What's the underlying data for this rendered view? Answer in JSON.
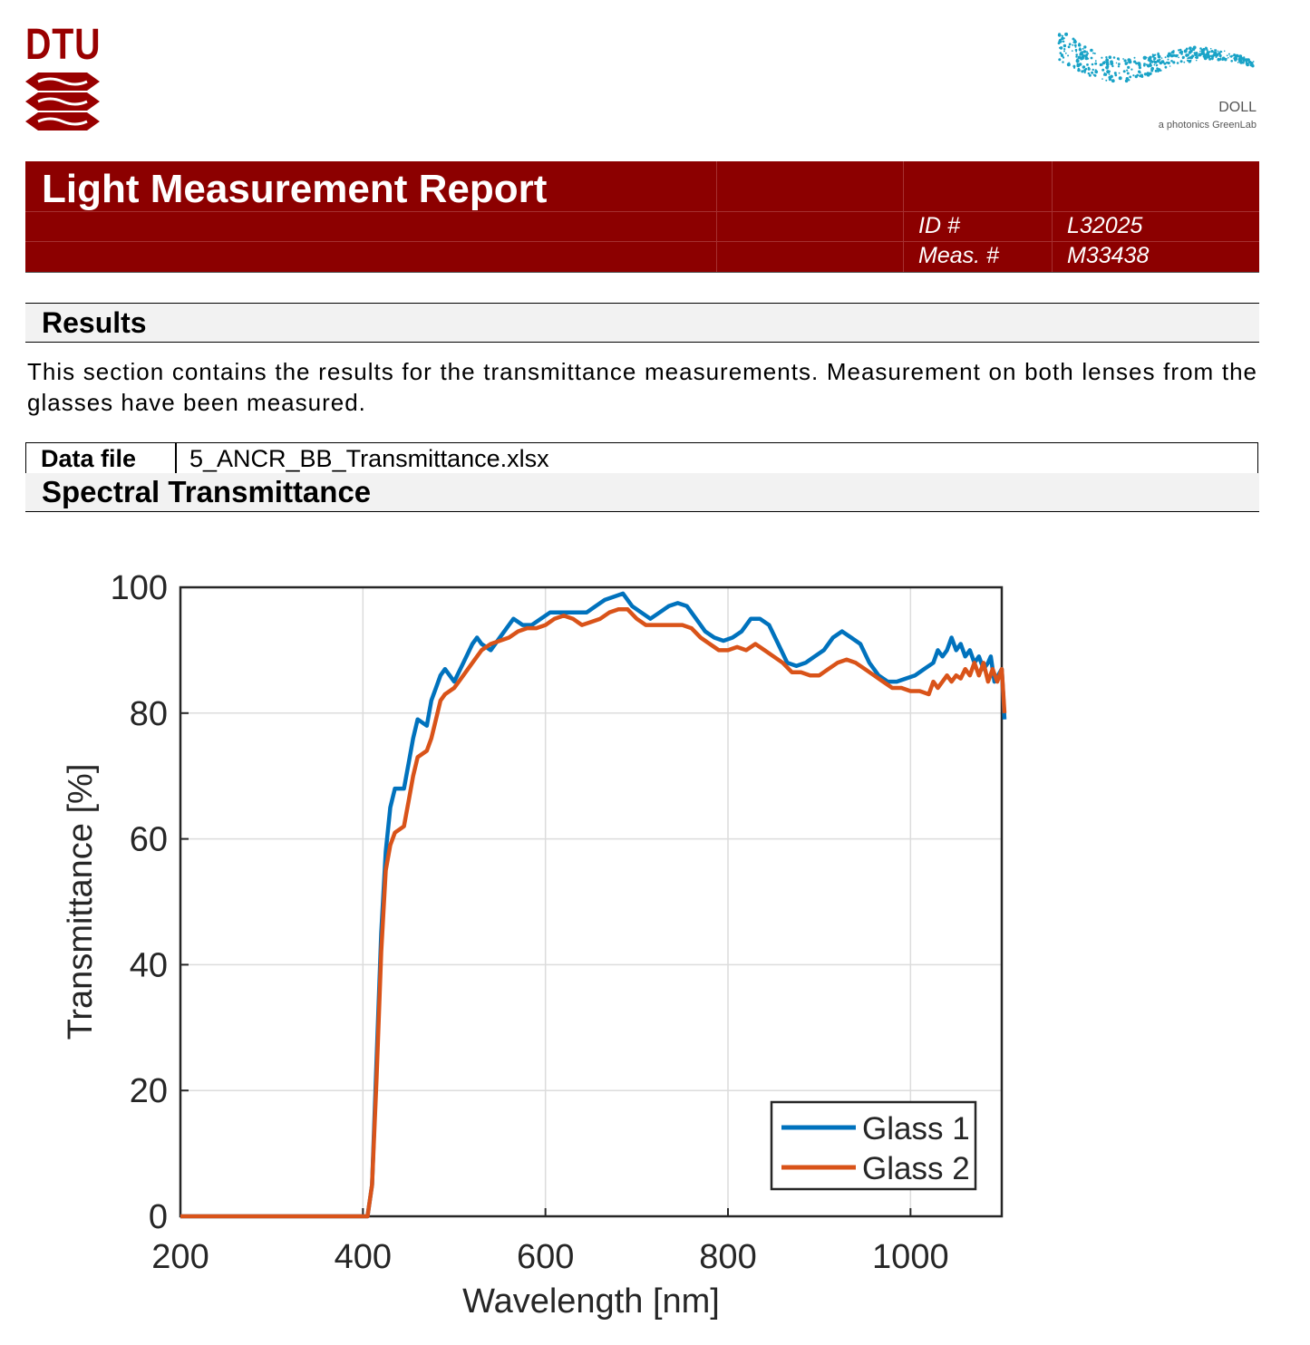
{
  "logos": {
    "dtu_text": "DTU",
    "doll_name": "DOLL",
    "doll_subtitle": "a photonics GreenLab",
    "brand_color": "#990000",
    "doll_color": "#1aa3c7"
  },
  "header": {
    "title": "Light Measurement Report",
    "id_label": "ID #",
    "id_value": "L32025",
    "meas_label": "Meas. #",
    "meas_value": "M33438",
    "background": "#8c0000"
  },
  "results": {
    "heading": "Results",
    "text": "This section contains the results for the transmittance measurements. Measurement on both lenses from the glasses have been measured."
  },
  "data_file": {
    "label": "Data file",
    "value": "5_ANCR_BB_Transmittance.xlsx"
  },
  "spectral": {
    "heading": "Spectral Transmittance"
  },
  "chart_data": {
    "type": "line",
    "title": "",
    "xlabel": "Wavelength [nm]",
    "ylabel": "Transmittance [%]",
    "xlim": [
      200,
      1100
    ],
    "ylim": [
      0,
      100
    ],
    "xticks": [
      200,
      400,
      600,
      800,
      1000
    ],
    "yticks": [
      0,
      20,
      40,
      60,
      80,
      100
    ],
    "grid": true,
    "legend": "bottom-right",
    "series": [
      {
        "name": "Glass 1",
        "color": "#0072bd",
        "points": [
          [
            200,
            0
          ],
          [
            240,
            0
          ],
          [
            280,
            0
          ],
          [
            320,
            0
          ],
          [
            360,
            0
          ],
          [
            405,
            0
          ],
          [
            410,
            5
          ],
          [
            415,
            25
          ],
          [
            420,
            45
          ],
          [
            425,
            58
          ],
          [
            430,
            65
          ],
          [
            435,
            68
          ],
          [
            445,
            68
          ],
          [
            450,
            72
          ],
          [
            455,
            76
          ],
          [
            460,
            79
          ],
          [
            470,
            78
          ],
          [
            475,
            82
          ],
          [
            480,
            84
          ],
          [
            485,
            86
          ],
          [
            490,
            87
          ],
          [
            495,
            86
          ],
          [
            500,
            85
          ],
          [
            510,
            88
          ],
          [
            520,
            91
          ],
          [
            525,
            92
          ],
          [
            530,
            91
          ],
          [
            540,
            90
          ],
          [
            550,
            92
          ],
          [
            560,
            94
          ],
          [
            565,
            95
          ],
          [
            575,
            94
          ],
          [
            585,
            94
          ],
          [
            595,
            95
          ],
          [
            605,
            96
          ],
          [
            615,
            96
          ],
          [
            630,
            96
          ],
          [
            645,
            96
          ],
          [
            655,
            97
          ],
          [
            665,
            98
          ],
          [
            675,
            98.5
          ],
          [
            685,
            99
          ],
          [
            695,
            97
          ],
          [
            705,
            96
          ],
          [
            715,
            95
          ],
          [
            725,
            96
          ],
          [
            735,
            97
          ],
          [
            745,
            97.5
          ],
          [
            755,
            97
          ],
          [
            765,
            95
          ],
          [
            775,
            93
          ],
          [
            785,
            92
          ],
          [
            795,
            91.5
          ],
          [
            805,
            92
          ],
          [
            815,
            93
          ],
          [
            825,
            95
          ],
          [
            835,
            95
          ],
          [
            845,
            94
          ],
          [
            855,
            91
          ],
          [
            865,
            88
          ],
          [
            875,
            87.5
          ],
          [
            885,
            88
          ],
          [
            895,
            89
          ],
          [
            905,
            90
          ],
          [
            915,
            92
          ],
          [
            925,
            93
          ],
          [
            935,
            92
          ],
          [
            945,
            91
          ],
          [
            955,
            88
          ],
          [
            965,
            86
          ],
          [
            975,
            85
          ],
          [
            985,
            85
          ],
          [
            995,
            85.5
          ],
          [
            1005,
            86
          ],
          [
            1015,
            87
          ],
          [
            1025,
            88
          ],
          [
            1030,
            90
          ],
          [
            1035,
            89
          ],
          [
            1040,
            90
          ],
          [
            1045,
            92
          ],
          [
            1050,
            90
          ],
          [
            1055,
            91
          ],
          [
            1060,
            89
          ],
          [
            1065,
            90
          ],
          [
            1070,
            88
          ],
          [
            1075,
            89
          ],
          [
            1080,
            87
          ],
          [
            1085,
            88
          ],
          [
            1088,
            89
          ],
          [
            1092,
            85
          ],
          [
            1096,
            86
          ],
          [
            1100,
            87
          ],
          [
            1103,
            79
          ]
        ]
      },
      {
        "name": "Glass 2",
        "color": "#d95319",
        "points": [
          [
            200,
            0
          ],
          [
            240,
            0
          ],
          [
            280,
            0
          ],
          [
            320,
            0
          ],
          [
            360,
            0
          ],
          [
            405,
            0
          ],
          [
            410,
            5
          ],
          [
            415,
            22
          ],
          [
            420,
            42
          ],
          [
            425,
            55
          ],
          [
            430,
            59
          ],
          [
            435,
            61
          ],
          [
            445,
            62
          ],
          [
            450,
            66
          ],
          [
            455,
            70
          ],
          [
            460,
            73
          ],
          [
            470,
            74
          ],
          [
            475,
            76
          ],
          [
            480,
            79
          ],
          [
            485,
            82
          ],
          [
            490,
            83
          ],
          [
            500,
            84
          ],
          [
            510,
            86
          ],
          [
            520,
            88
          ],
          [
            530,
            90
          ],
          [
            540,
            91
          ],
          [
            550,
            91.5
          ],
          [
            560,
            92
          ],
          [
            570,
            93
          ],
          [
            580,
            93.5
          ],
          [
            590,
            93.5
          ],
          [
            600,
            94
          ],
          [
            610,
            95
          ],
          [
            620,
            95.5
          ],
          [
            630,
            95
          ],
          [
            640,
            94
          ],
          [
            650,
            94.5
          ],
          [
            660,
            95
          ],
          [
            670,
            96
          ],
          [
            680,
            96.5
          ],
          [
            690,
            96.5
          ],
          [
            700,
            95
          ],
          [
            710,
            94
          ],
          [
            720,
            94
          ],
          [
            730,
            94
          ],
          [
            740,
            94
          ],
          [
            750,
            94
          ],
          [
            760,
            93.5
          ],
          [
            770,
            92
          ],
          [
            780,
            91
          ],
          [
            790,
            90
          ],
          [
            800,
            90
          ],
          [
            810,
            90.5
          ],
          [
            820,
            90
          ],
          [
            830,
            91
          ],
          [
            840,
            90
          ],
          [
            850,
            89
          ],
          [
            860,
            88
          ],
          [
            870,
            86.5
          ],
          [
            880,
            86.5
          ],
          [
            890,
            86
          ],
          [
            900,
            86
          ],
          [
            910,
            87
          ],
          [
            920,
            88
          ],
          [
            930,
            88.5
          ],
          [
            940,
            88
          ],
          [
            950,
            87
          ],
          [
            960,
            86
          ],
          [
            970,
            85
          ],
          [
            980,
            84
          ],
          [
            990,
            84
          ],
          [
            1000,
            83.5
          ],
          [
            1010,
            83.5
          ],
          [
            1020,
            83
          ],
          [
            1025,
            85
          ],
          [
            1030,
            84
          ],
          [
            1035,
            85
          ],
          [
            1040,
            86
          ],
          [
            1045,
            85
          ],
          [
            1050,
            86
          ],
          [
            1055,
            85.5
          ],
          [
            1060,
            87
          ],
          [
            1065,
            86
          ],
          [
            1070,
            88
          ],
          [
            1075,
            86
          ],
          [
            1080,
            88
          ],
          [
            1085,
            85
          ],
          [
            1090,
            87
          ],
          [
            1095,
            85
          ],
          [
            1100,
            87
          ],
          [
            1103,
            80
          ]
        ]
      }
    ]
  }
}
